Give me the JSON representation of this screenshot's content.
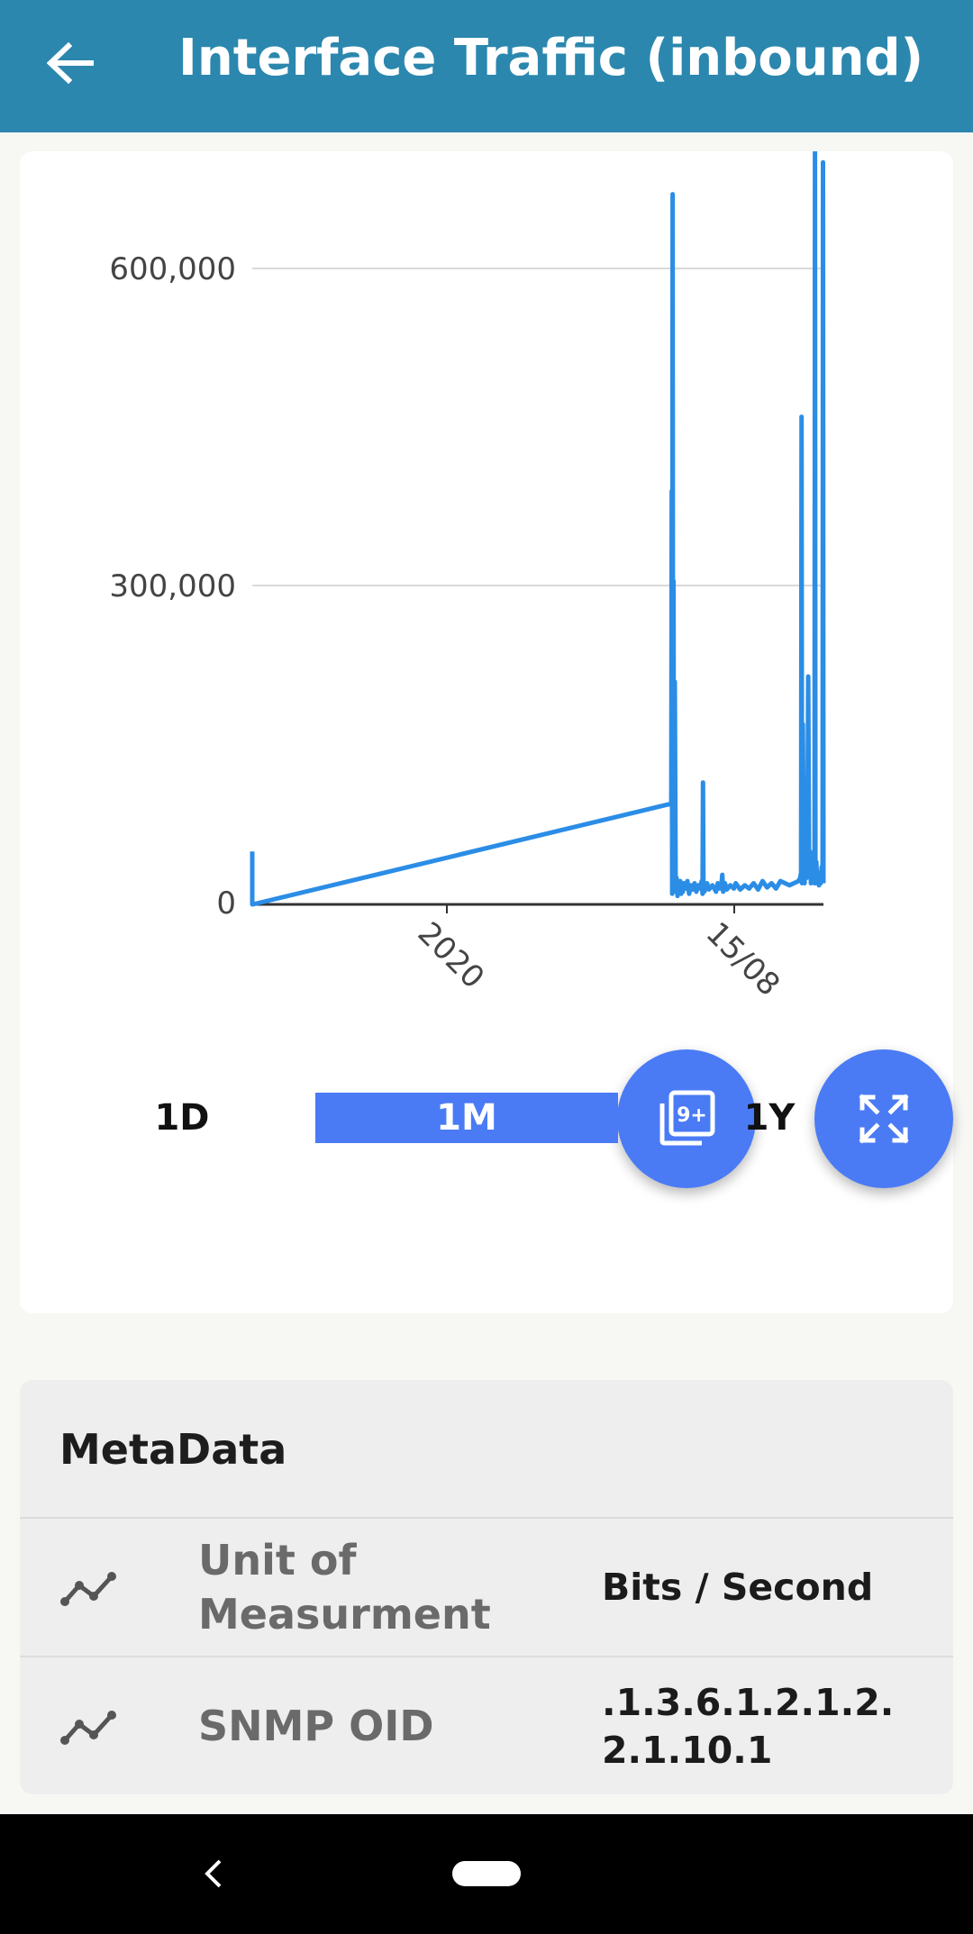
{
  "header": {
    "title": "Interface Traffic (inbound)",
    "back_icon": "arrow-left-icon"
  },
  "chart_data": {
    "type": "line",
    "title": "",
    "xlabel": "",
    "ylabel": "",
    "ylim": [
      0,
      710000
    ],
    "y_ticks": [
      0,
      300000,
      600000
    ],
    "y_tick_labels": [
      "0",
      "300,000",
      "600,000"
    ],
    "x_tick_labels": [
      "2020",
      "15/08"
    ],
    "x_scale_note": "time axis; early sample around 2019, dense sampling in August",
    "grid": true,
    "line_color": "#2b8de6",
    "series": [
      {
        "x": [
          0,
          0,
          0.5,
          468,
          468.5,
          469,
          469.5,
          470,
          470.5,
          471,
          472,
          473,
          474,
          475,
          476,
          477,
          478,
          479,
          480,
          481,
          482,
          484,
          486,
          488,
          490,
          492,
          494,
          496,
          498,
          500,
          502,
          503,
          503.5,
          504,
          505,
          508,
          510,
          514,
          518,
          520,
          522,
          524,
          525,
          526,
          528,
          530,
          534,
          538,
          540,
          545,
          550,
          555,
          560,
          565,
          570,
          575,
          580,
          585,
          590,
          600,
          605,
          610,
          612,
          613,
          613.5,
          614,
          615,
          616,
          617,
          618,
          619,
          620,
          621,
          622,
          623,
          624,
          625,
          626,
          627,
          628,
          628.5,
          629,
          630,
          631,
          632,
          633,
          634,
          635,
          636,
          637,
          637.5,
          638
        ],
        "y": [
          50000,
          0,
          0,
          95000,
          390000,
          10000,
          670000,
          25000,
          305000,
          15000,
          210000,
          12000,
          25000,
          8000,
          20000,
          14000,
          22000,
          10000,
          18000,
          12000,
          20000,
          15000,
          22000,
          10000,
          18000,
          14000,
          20000,
          12000,
          18000,
          15000,
          22000,
          10000,
          115000,
          15000,
          12000,
          20000,
          14000,
          18000,
          12000,
          20000,
          15000,
          18000,
          28000,
          12000,
          20000,
          14000,
          18000,
          15000,
          20000,
          14000,
          18000,
          15000,
          20000,
          14000,
          22000,
          16000,
          20000,
          15000,
          22000,
          18000,
          20000,
          22000,
          25000,
          30000,
          460000,
          20000,
          170000,
          45000,
          20000,
          50000,
          25000,
          40000,
          215000,
          30000,
          50000,
          20000,
          35000,
          22000,
          30000,
          20000,
          710000,
          20000,
          40000,
          22000,
          30000,
          18000,
          25000,
          20000,
          35000,
          22000,
          700000,
          20000
        ]
      }
    ]
  },
  "fabs": {
    "count_icon": "image-count-9plus-icon",
    "count_badge": "9+",
    "expand_icon": "fullscreen-expand-icon"
  },
  "ranges": {
    "d1": "1D",
    "m1": "1M",
    "y1": "1Y",
    "selected": "1M"
  },
  "metadata": {
    "title": "MetaData",
    "rows": [
      {
        "icon": "trend-line-icon",
        "label": "Unit of Measurment",
        "value": "Bits / Second"
      },
      {
        "icon": "trend-line-icon",
        "label": "SNMP OID",
        "value": ".1.3.6.1.2.1.2.2.1.10.1"
      }
    ]
  },
  "colors": {
    "app_bar": "#2b87ae",
    "accent": "#4a7bf5",
    "line": "#2b8de6"
  }
}
